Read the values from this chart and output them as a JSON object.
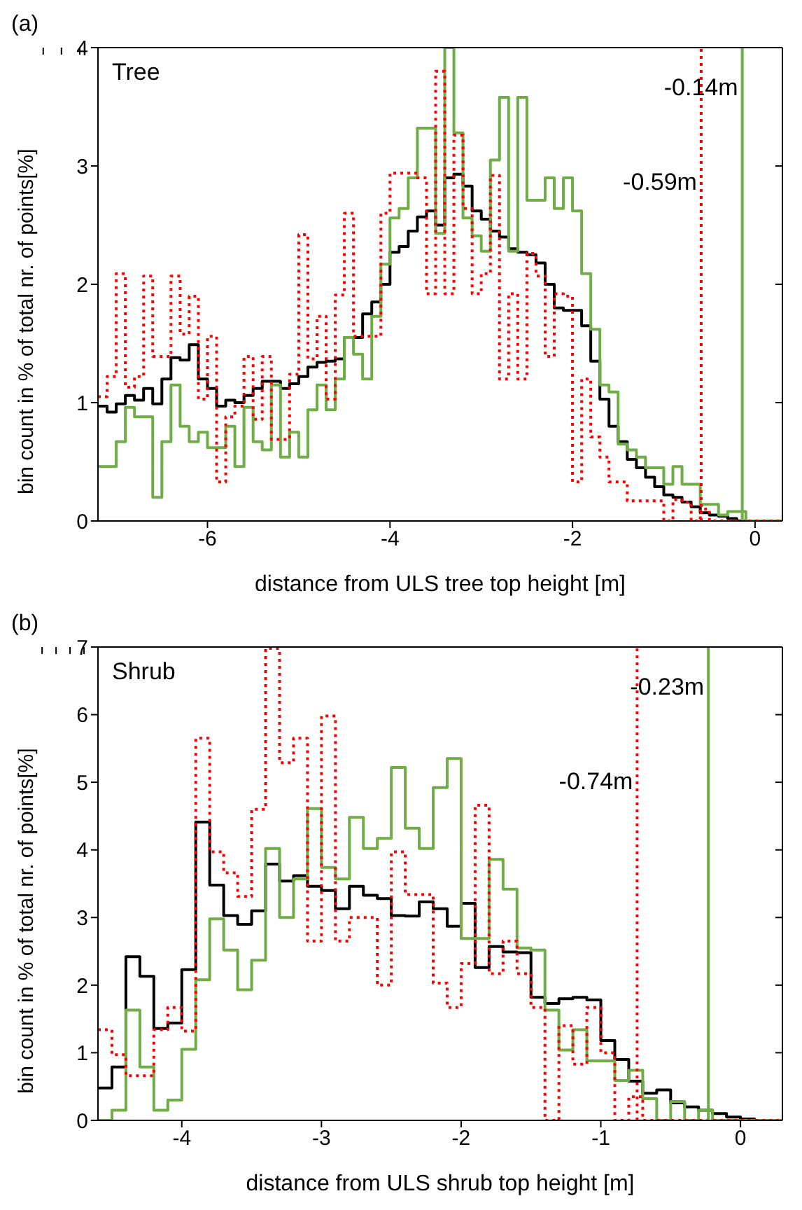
{
  "chart_data": [
    {
      "type": "histogram",
      "title": "(a)",
      "xlabel": "distance from ULS tree top height [m]",
      "ylabel": "bin count in % of total nr. of points[%]",
      "annotations": [
        "Tree"
      ],
      "bins": [
        -7.2,
        -7.1,
        -7.0,
        -6.9,
        -6.8,
        -6.7,
        -6.6,
        -6.5,
        -6.4,
        -6.3,
        -6.2,
        -6.1,
        -6.0,
        -5.9,
        -5.8,
        -5.7,
        -5.6,
        -5.5,
        -5.4,
        -5.3,
        -5.2,
        -5.1,
        -5.0,
        -4.9,
        -4.8,
        -4.7,
        -4.6,
        -4.5,
        -4.4,
        -4.3,
        -4.2,
        -4.1,
        -4.0,
        -3.9,
        -3.8,
        -3.7,
        -3.6,
        -3.5,
        -3.4,
        -3.3,
        -3.2,
        -3.1,
        -3.0,
        -2.9,
        -2.8,
        -2.7,
        -2.6,
        -2.5,
        -2.4,
        -2.3,
        -2.2,
        -2.1,
        -2.0,
        -1.9,
        -1.8,
        -1.7,
        -1.6,
        -1.5,
        -1.4,
        -1.3,
        -1.2,
        -1.1,
        -1.0,
        -0.9,
        -0.8,
        -0.7,
        -0.6,
        -0.5,
        -0.4,
        -0.3,
        -0.2,
        -0.1,
        0.0,
        0.1,
        0.2,
        0.3
      ],
      "series": [
        {
          "color": "#000000",
          "line_style": "solid",
          "values": [
            0.97,
            0.92,
            0.99,
            1.06,
            1.02,
            1.12,
            0.99,
            1.2,
            1.38,
            1.36,
            1.49,
            1.2,
            1.12,
            0.97,
            1.02,
            1.0,
            1.06,
            1.12,
            1.18,
            1.18,
            1.12,
            1.16,
            1.22,
            1.3,
            1.34,
            1.35,
            1.37,
            1.55,
            1.55,
            1.75,
            1.85,
            2.0,
            2.27,
            2.32,
            2.45,
            2.57,
            2.62,
            2.5,
            2.9,
            2.93,
            2.83,
            2.62,
            2.55,
            2.45,
            2.4,
            2.3,
            2.27,
            2.25,
            2.18,
            2.0,
            1.8,
            1.78,
            1.78,
            1.65,
            1.35,
            1.03,
            0.8,
            0.67,
            0.52,
            0.45,
            0.37,
            0.29,
            0.22,
            0.2,
            0.16,
            0.12,
            0.07,
            0.05,
            0.04,
            0.02,
            0,
            0,
            0,
            0,
            0
          ]
        },
        {
          "color": "#70ad47",
          "line_style": "solid",
          "values": [
            0.46,
            0.46,
            0.67,
            0.96,
            0.88,
            0.88,
            0.2,
            0.67,
            1.15,
            0.8,
            0.67,
            0.75,
            0.62,
            0.62,
            0.8,
            0.46,
            0.96,
            0.67,
            0.6,
            1.15,
            0.54,
            0.75,
            0.54,
            0.94,
            1.15,
            0.94,
            1.2,
            1.55,
            1.41,
            1.2,
            1.73,
            2.17,
            2.56,
            2.64,
            2.9,
            3.32,
            3.32,
            2.43,
            4.0,
            3.28,
            2.56,
            2.41,
            2.28,
            3.05,
            3.58,
            2.28,
            3.58,
            2.71,
            2.71,
            2.9,
            2.64,
            2.9,
            2.62,
            2.09,
            1.62,
            1.15,
            1.09,
            0.65,
            0.6,
            0.54,
            0.45,
            0.45,
            0.31,
            0.46,
            0.31,
            0.31,
            0.14,
            0.14,
            0.05,
            0.08,
            0.08,
            0,
            0,
            0,
            0
          ]
        },
        {
          "color": "#ff0000",
          "line_style": "dotted",
          "values": [
            1.05,
            1.22,
            2.09,
            1.13,
            1.22,
            2.07,
            1.39,
            1.39,
            2.07,
            1.58,
            1.9,
            1.03,
            1.56,
            0.33,
            0.88,
            0.97,
            1.39,
            0.86,
            1.39,
            0.69,
            0.69,
            1.24,
            2.42,
            1.37,
            1.73,
            1.03,
            1.91,
            2.6,
            1.56,
            1.56,
            1.56,
            2.6,
            2.94,
            2.94,
            2.94,
            2.9,
            1.92,
            3.8,
            1.92,
            3.26,
            2.64,
            1.92,
            2.09,
            2.92,
            1.2,
            1.92,
            1.2,
            2.26,
            2.07,
            1.39,
            1.92,
            1.9,
            0.33,
            1.2,
            0.71,
            0.54,
            0.33,
            0.33,
            0.17,
            0.17,
            0.17,
            0.17,
            0,
            0.18,
            0.16,
            0,
            0.1,
            0,
            0,
            0,
            0,
            0,
            0,
            0,
            0
          ]
        }
      ],
      "xlim": [
        -7.2,
        0.3
      ],
      "xticks": [
        -6,
        -4,
        -2,
        0
      ],
      "ylim": [
        0,
        4
      ],
      "yticks": [
        0,
        1,
        2,
        3,
        4
      ],
      "ref_lines": [
        {
          "axis": "x",
          "value": -0.14,
          "label": "-0.14m",
          "color": "#70ad47",
          "line_style": "solid"
        },
        {
          "axis": "x",
          "value": -0.59,
          "label": "-0.59m",
          "color": "#ff0000",
          "line_style": "dotted"
        }
      ]
    },
    {
      "type": "histogram",
      "title": "(b)",
      "xlabel": "distance from ULS shrub top height [m]",
      "ylabel": "bin count in % of total nr. of points[%]",
      "annotations": [
        "Shrub"
      ],
      "bins": [
        -4.6,
        -4.5,
        -4.4,
        -4.3,
        -4.2,
        -4.1,
        -4.0,
        -3.9,
        -3.8,
        -3.7,
        -3.6,
        -3.5,
        -3.4,
        -3.3,
        -3.2,
        -3.1,
        -3.0,
        -2.9,
        -2.8,
        -2.7,
        -2.6,
        -2.5,
        -2.4,
        -2.3,
        -2.2,
        -2.1,
        -2.0,
        -1.9,
        -1.8,
        -1.7,
        -1.6,
        -1.5,
        -1.4,
        -1.3,
        -1.2,
        -1.1,
        -1.0,
        -0.9,
        -0.8,
        -0.7,
        -0.6,
        -0.5,
        -0.4,
        -0.3,
        -0.2,
        -0.1,
        0.0,
        0.1,
        0.2,
        0.3
      ],
      "series": [
        {
          "color": "#000000",
          "line_style": "solid",
          "values": [
            0.48,
            0.79,
            2.42,
            2.13,
            1.36,
            1.44,
            2.23,
            4.41,
            3.48,
            3.03,
            2.9,
            3.1,
            3.79,
            3.54,
            3.62,
            3.46,
            3.4,
            3.13,
            3.46,
            3.33,
            3.28,
            3.03,
            3.02,
            3.23,
            3.13,
            2.87,
            3.21,
            2.26,
            2.57,
            2.49,
            2.48,
            1.82,
            1.73,
            1.8,
            1.82,
            1.78,
            1.18,
            0.9,
            0.58,
            0.4,
            0.45,
            0.26,
            0.2,
            0.15,
            0.1,
            0.05,
            0.02,
            0,
            0
          ]
        },
        {
          "color": "#70ad47",
          "line_style": "solid",
          "values": [
            0,
            0.15,
            1.63,
            0.79,
            0.15,
            0.3,
            1.05,
            2.08,
            2.98,
            2.52,
            1.93,
            2.37,
            4.02,
            3.0,
            3.57,
            4.61,
            3.74,
            3.57,
            4.48,
            4.02,
            4.17,
            5.22,
            4.32,
            4.02,
            4.92,
            5.35,
            2.69,
            2.69,
            3.86,
            3.42,
            2.55,
            2.52,
            1.63,
            1.04,
            1.34,
            0.88,
            0.88,
            0.59,
            0.74,
            0.32,
            0,
            0.28,
            0,
            0.15,
            0,
            0,
            0,
            0,
            0
          ]
        },
        {
          "color": "#ff0000",
          "line_style": "dotted",
          "values": [
            1.34,
            0.97,
            0.66,
            0.66,
            1.34,
            1.67,
            1.32,
            5.65,
            3.97,
            3.66,
            3.31,
            4.6,
            6.98,
            5.29,
            5.65,
            2.65,
            5.98,
            2.65,
            3.0,
            3.0,
            2.0,
            3.97,
            3.34,
            3.34,
            2.03,
            1.67,
            2.32,
            4.66,
            2.17,
            2.65,
            2.17,
            1.67,
            0,
            1.4,
            0.83,
            1.67,
            1.0,
            0,
            0.35,
            0,
            0,
            0,
            0,
            0,
            0,
            0,
            0,
            0,
            0
          ]
        }
      ],
      "xlim": [
        -4.6,
        0.3
      ],
      "xticks": [
        -4,
        -3,
        -2,
        -1,
        0
      ],
      "ylim": [
        0,
        7
      ],
      "yticks": [
        0,
        1,
        2,
        3,
        4,
        5,
        6,
        7
      ],
      "ref_lines": [
        {
          "axis": "x",
          "value": -0.23,
          "label": "-0.23m",
          "color": "#70ad47",
          "line_style": "solid"
        },
        {
          "axis": "x",
          "value": -0.74,
          "label": "-0.74m",
          "color": "#ff0000",
          "line_style": "dotted"
        }
      ]
    }
  ]
}
